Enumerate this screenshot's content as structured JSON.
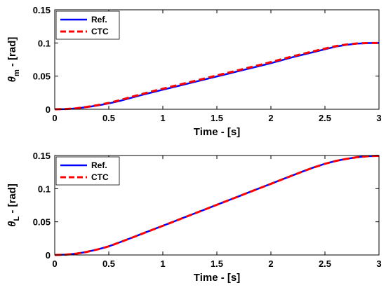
{
  "chart_data": [
    {
      "type": "line",
      "xlabel": "Time - [s]",
      "ylabel_symbol": "θ",
      "ylabel_sub": "m",
      "ylabel_rest": " - [rad]",
      "xlim": [
        0,
        3
      ],
      "ylim": [
        0,
        0.15
      ],
      "xticks": [
        0,
        0.5,
        1,
        1.5,
        2,
        2.5,
        3
      ],
      "xtick_labels": [
        "0",
        "0.5",
        "1",
        "1.5",
        "2",
        "2.5",
        "3"
      ],
      "yticks": [
        0,
        0.05,
        0.1,
        0.15
      ],
      "ytick_labels": [
        "0",
        "0.05",
        "0.1",
        "0.15"
      ],
      "legend_position": "top-left",
      "series": [
        {
          "name": "Ref.",
          "color": "#0000ff",
          "style": "solid",
          "x": [
            0,
            0.1,
            0.2,
            0.3,
            0.4,
            0.5,
            0.6,
            0.7,
            0.8,
            0.9,
            1.0,
            1.1,
            1.2,
            1.3,
            1.4,
            1.5,
            1.6,
            1.7,
            1.8,
            1.9,
            2.0,
            2.1,
            2.2,
            2.3,
            2.4,
            2.5,
            2.6,
            2.7,
            2.8,
            2.9,
            3.0
          ],
          "y": [
            0,
            0.0003,
            0.0013,
            0.0033,
            0.0058,
            0.0088,
            0.0125,
            0.017,
            0.0213,
            0.0255,
            0.0295,
            0.0335,
            0.0375,
            0.0415,
            0.0455,
            0.0495,
            0.0535,
            0.0575,
            0.0615,
            0.0655,
            0.0695,
            0.074,
            0.0785,
            0.0825,
            0.0865,
            0.0905,
            0.0945,
            0.0972,
            0.099,
            0.0998,
            0.1
          ]
        },
        {
          "name": "CTC",
          "color": "#ff0000",
          "style": "dashed",
          "x": [
            0,
            0.1,
            0.2,
            0.3,
            0.4,
            0.5,
            0.6,
            0.7,
            0.8,
            0.9,
            1.0,
            1.1,
            1.2,
            1.3,
            1.4,
            1.5,
            1.6,
            1.7,
            1.8,
            1.9,
            2.0,
            2.1,
            2.2,
            2.3,
            2.4,
            2.5,
            2.6,
            2.7,
            2.8,
            2.9,
            3.0
          ],
          "y": [
            0,
            0.0004,
            0.0015,
            0.0037,
            0.0064,
            0.0096,
            0.0136,
            0.0182,
            0.0227,
            0.027,
            0.031,
            0.035,
            0.039,
            0.043,
            0.047,
            0.051,
            0.055,
            0.059,
            0.063,
            0.067,
            0.0712,
            0.0755,
            0.0798,
            0.0838,
            0.0877,
            0.0915,
            0.0952,
            0.0977,
            0.0993,
            0.0999,
            0.1
          ]
        }
      ]
    },
    {
      "type": "line",
      "xlabel": "Time - [s]",
      "ylabel_symbol": "θ",
      "ylabel_sub": "L",
      "ylabel_rest": " - [rad]",
      "xlim": [
        0,
        3
      ],
      "ylim": [
        0,
        0.15
      ],
      "xticks": [
        0,
        0.5,
        1,
        1.5,
        2,
        2.5,
        3
      ],
      "xtick_labels": [
        "0",
        "0.5",
        "1",
        "1.5",
        "2",
        "2.5",
        "3"
      ],
      "yticks": [
        0,
        0.05,
        0.1,
        0.15
      ],
      "ytick_labels": [
        "0",
        "0.05",
        "0.1",
        "0.15"
      ],
      "legend_position": "top-left",
      "series": [
        {
          "name": "Ref.",
          "color": "#0000ff",
          "style": "solid",
          "x": [
            0,
            0.1,
            0.2,
            0.3,
            0.4,
            0.5,
            0.6,
            0.7,
            0.8,
            0.9,
            1.0,
            1.1,
            1.2,
            1.3,
            1.4,
            1.5,
            1.6,
            1.7,
            1.8,
            1.9,
            2.0,
            2.1,
            2.2,
            2.3,
            2.4,
            2.5,
            2.6,
            2.7,
            2.8,
            2.9,
            3.0
          ],
          "y": [
            0,
            0.0005,
            0.002,
            0.0048,
            0.0085,
            0.013,
            0.019,
            0.0252,
            0.0315,
            0.0378,
            0.044,
            0.0503,
            0.0567,
            0.063,
            0.0693,
            0.0757,
            0.082,
            0.0883,
            0.0947,
            0.101,
            0.1073,
            0.1137,
            0.12,
            0.1263,
            0.1322,
            0.1375,
            0.1418,
            0.145,
            0.1475,
            0.149,
            0.1495
          ]
        },
        {
          "name": "CTC",
          "color": "#ff0000",
          "style": "dashed",
          "x": [
            0,
            0.1,
            0.2,
            0.3,
            0.4,
            0.5,
            0.6,
            0.7,
            0.8,
            0.9,
            1.0,
            1.1,
            1.2,
            1.3,
            1.4,
            1.5,
            1.6,
            1.7,
            1.8,
            1.9,
            2.0,
            2.1,
            2.2,
            2.3,
            2.4,
            2.5,
            2.6,
            2.7,
            2.8,
            2.9,
            3.0
          ],
          "y": [
            0,
            0.0005,
            0.002,
            0.0048,
            0.0085,
            0.013,
            0.019,
            0.0252,
            0.0315,
            0.0378,
            0.044,
            0.0503,
            0.0567,
            0.063,
            0.0693,
            0.0757,
            0.082,
            0.0883,
            0.0947,
            0.101,
            0.1073,
            0.1137,
            0.12,
            0.1263,
            0.1322,
            0.1375,
            0.1418,
            0.145,
            0.1475,
            0.149,
            0.1495
          ]
        }
      ]
    }
  ]
}
